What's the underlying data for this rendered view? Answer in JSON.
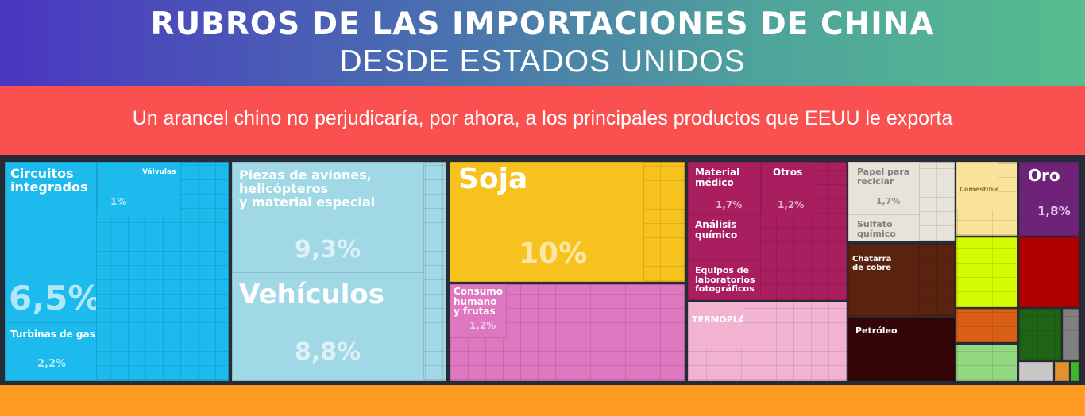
{
  "header": {
    "title_line1": "RUBROS DE LAS IMPORTACIONES DE CHINA",
    "title_line2": "DESDE ESTADOS UNIDOS",
    "subtitle": "Un arancel chino no perjudicaría, por ahora, a los principales productos que EEUU le exporta"
  },
  "chart_data": {
    "type": "treemap",
    "title": "RUBROS DE LAS IMPORTACIONES DE CHINA DESDE ESTADOS UNIDOS",
    "tiles": [
      {
        "label": "Circuitos integrados",
        "value": "6,5%",
        "color": "#1dbbed"
      },
      {
        "label": "Válvulas",
        "value": "1%",
        "color": "#1dbbed"
      },
      {
        "label": "Turbinas de gas",
        "value": "2,2%",
        "color": "#1dbbed"
      },
      {
        "label": "Piezas de aviones, helicópteros y material especial",
        "value": "9,3%",
        "color": "#a0d8e5"
      },
      {
        "label": "Vehículos",
        "value": "8,8%",
        "color": "#a0d8e5"
      },
      {
        "label": "Soja",
        "value": "10%",
        "color": "#f8c21e"
      },
      {
        "label": "Consumo humano y frutas",
        "value": "1,2%",
        "color": "#de77c0"
      },
      {
        "label": "Material médico",
        "value": "1,7%",
        "color": "#a91e5e"
      },
      {
        "label": "Otros",
        "value": "1,2%",
        "color": "#a91e5e"
      },
      {
        "label": "Análisis químico",
        "color": "#a91e5e"
      },
      {
        "label": "Equipos de laboratorios fotográficos",
        "color": "#a91e5e"
      },
      {
        "label": "TERMOPLÁSTICO",
        "color": "#f2b3d0"
      },
      {
        "label": "Papel para reciclar",
        "value": "1,7%",
        "color": "#e8e3d8"
      },
      {
        "label": "Sulfato químico",
        "color": "#e8e3d8"
      },
      {
        "label": "Chatarra de cobre",
        "color": "#5a2310"
      },
      {
        "label": "Petróleo",
        "color": "#330507"
      },
      {
        "label": "Comestibles",
        "color": "#f9e29a"
      },
      {
        "label": "Oro",
        "value": "1,8%",
        "color": "#6e2278"
      }
    ]
  }
}
